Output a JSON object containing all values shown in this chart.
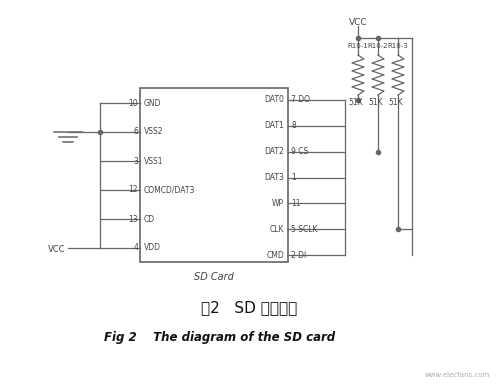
{
  "bg_color": "#ffffff",
  "title_cn": "图2   SD 卡原理图",
  "title_en": "Fig 2    The diagram of the SD card",
  "ic_label": "SD Card",
  "left_pins": [
    "GND",
    "VSS2",
    "VSS1",
    "COMCD/DAT3",
    "CD",
    "VDD"
  ],
  "left_pin_numbers": [
    "10",
    "6",
    "3",
    "12",
    "13",
    "4"
  ],
  "right_labels_inside": [
    "DAT0",
    "DAT1",
    "DAT2",
    "DAT3",
    "WP",
    "CLK",
    "CMD"
  ],
  "right_pin_numbers": [
    "7 DO",
    "8",
    "9 CS",
    "1",
    "11",
    "5 SCLK",
    "2 DI"
  ],
  "resistor_names": [
    "R10-1",
    "R10-2",
    "R10-3"
  ],
  "resistor_value": "51K",
  "vcc_label": "VCC",
  "line_color": "#666666",
  "text_color": "#444444",
  "watermark": "www.elecfans.com"
}
